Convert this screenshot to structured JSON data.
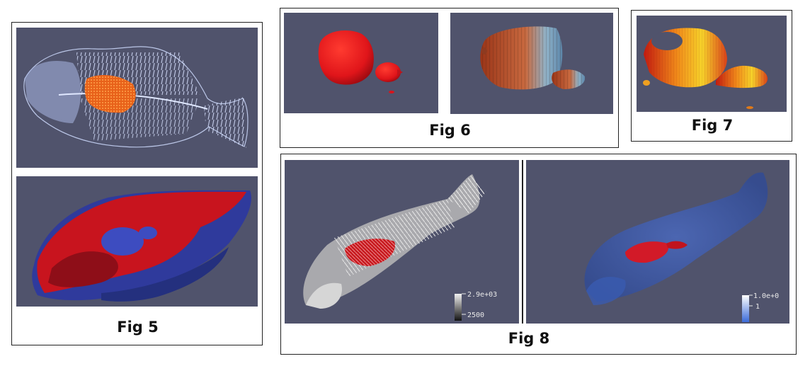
{
  "figures": {
    "fig5": {
      "caption": "Fig 5"
    },
    "fig6": {
      "caption": "Fig 6"
    },
    "fig7": {
      "caption": "Fig 7"
    },
    "fig8": {
      "caption": "Fig 8",
      "left_colorbar": {
        "max_label": "2.9e+03",
        "tick_label": "2500"
      },
      "right_colorbar": {
        "max_label": "1.0e+0",
        "tick_label": "1"
      }
    }
  },
  "colors": {
    "viewport_bg": "#50536c",
    "skeleton": "#b9c8ee",
    "organ_orange": "#e66a1c",
    "organ_red": "#d4151a",
    "body_blue": "#2f3fa0",
    "mesh_red": "#b0401c",
    "mesh_blue": "#7fa0c0"
  }
}
